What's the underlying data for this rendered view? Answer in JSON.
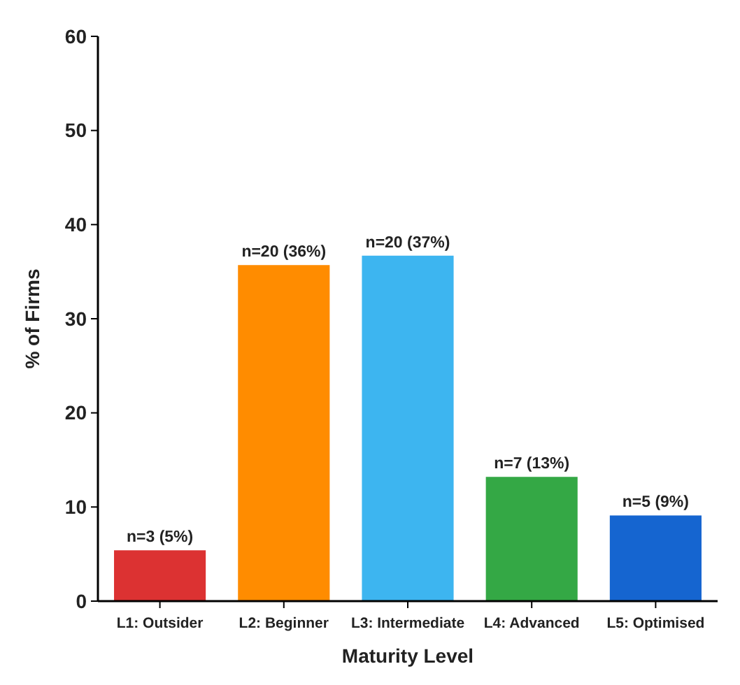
{
  "chart_data": {
    "type": "bar",
    "xlabel": "Maturity Level",
    "ylabel": "% of Firms",
    "categories": [
      "L1: Outsider",
      "L2: Beginner",
      "L3: Intermediate",
      "L4: Advanced",
      "L5: Optimised"
    ],
    "values": [
      5.4,
      35.7,
      36.7,
      13.2,
      9.1
    ],
    "colors": [
      "#dc3232",
      "#ff8c00",
      "#3db5f0",
      "#34a845",
      "#1565d0"
    ],
    "value_labels": [
      "n=3 (5%)",
      "n=20 (36%)",
      "n=20 (37%)",
      "n=7 (13%)",
      "n=5 (9%)"
    ],
    "ylim": [
      0,
      60
    ],
    "yticks": [
      0,
      10,
      20,
      30,
      40,
      50,
      60
    ],
    "grid": false
  }
}
